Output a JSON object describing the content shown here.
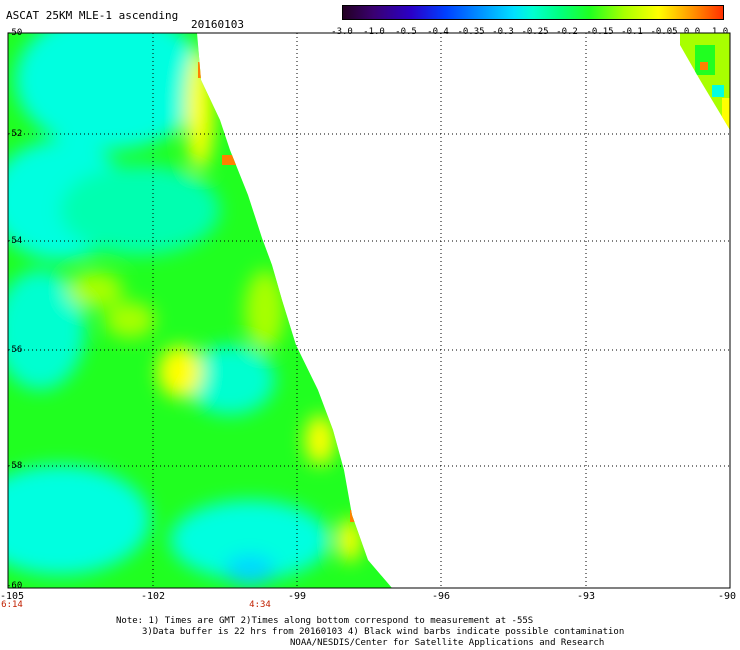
{
  "header": {
    "title": "ASCAT 25KM MLE-1 ascending",
    "date": "20160103"
  },
  "colorbar": {
    "labels": [
      "-3.0",
      "-1.0",
      "-0.5",
      "-0.4",
      "-0.35",
      "-0.3",
      "-0.25",
      "-0.2",
      "-0.15",
      "-0.1",
      "-0.05",
      "0.0",
      "1.0"
    ]
  },
  "axes": {
    "x_ticks": [
      "-105",
      "-102",
      "-99",
      "-96",
      "-93",
      "-90"
    ],
    "y_ticks": [
      "-50",
      "-52",
      "-54",
      "-56",
      "-58",
      "-60"
    ],
    "x_range": [
      -105,
      -90
    ],
    "y_range": [
      -60,
      -50
    ],
    "grid": true
  },
  "time_labels": [
    "6:14",
    "4:34"
  ],
  "footer": {
    "note1": "Note: 1) Times are GMT 2)Times along bottom correspond to measurement at -55S",
    "note2": "3)Data buffer is 22 hrs from 20160103 4) Black wind barbs indicate possible contamination",
    "note3": "NOAA/NESDIS/Center for Satellite Applications and Research"
  },
  "colors": {
    "cyan": "#00ffe0",
    "green": "#20ff20",
    "yellowgreen": "#a8ff00",
    "yellow": "#ffff00",
    "orange": "#ff8000"
  }
}
